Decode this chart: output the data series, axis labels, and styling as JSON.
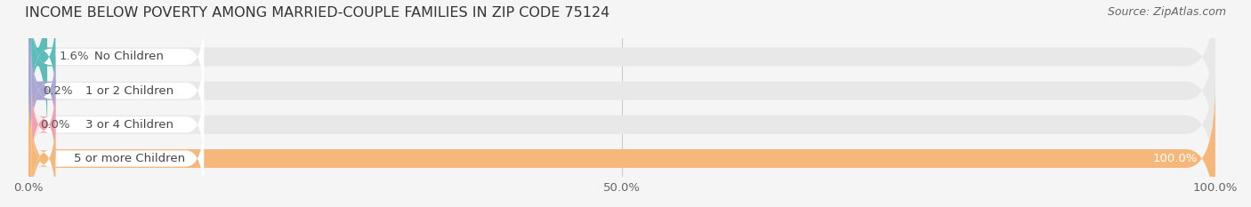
{
  "title": "INCOME BELOW POVERTY AMONG MARRIED-COUPLE FAMILIES IN ZIP CODE 75124",
  "source": "Source: ZipAtlas.com",
  "categories": [
    "No Children",
    "1 or 2 Children",
    "3 or 4 Children",
    "5 or more Children"
  ],
  "values": [
    1.6,
    0.2,
    0.0,
    100.0
  ],
  "bar_colors": [
    "#5bbcb8",
    "#a9a8d4",
    "#f4a0b0",
    "#f5b87a"
  ],
  "label_colors": [
    "#5bbcb8",
    "#a9a8d4",
    "#f4a0b0",
    "#f5b87a"
  ],
  "bg_color": "#f5f5f5",
  "bar_bg_color": "#e8e8e8",
  "xlim": [
    0,
    100
  ],
  "xticks": [
    0.0,
    50.0,
    100.0
  ],
  "xtick_labels": [
    "0.0%",
    "50.0%",
    "100.0%"
  ],
  "title_fontsize": 11.5,
  "label_fontsize": 9.5,
  "value_fontsize": 9.5,
  "source_fontsize": 9,
  "bar_height": 0.55,
  "figsize": [
    14.06,
    2.33
  ],
  "dpi": 100
}
